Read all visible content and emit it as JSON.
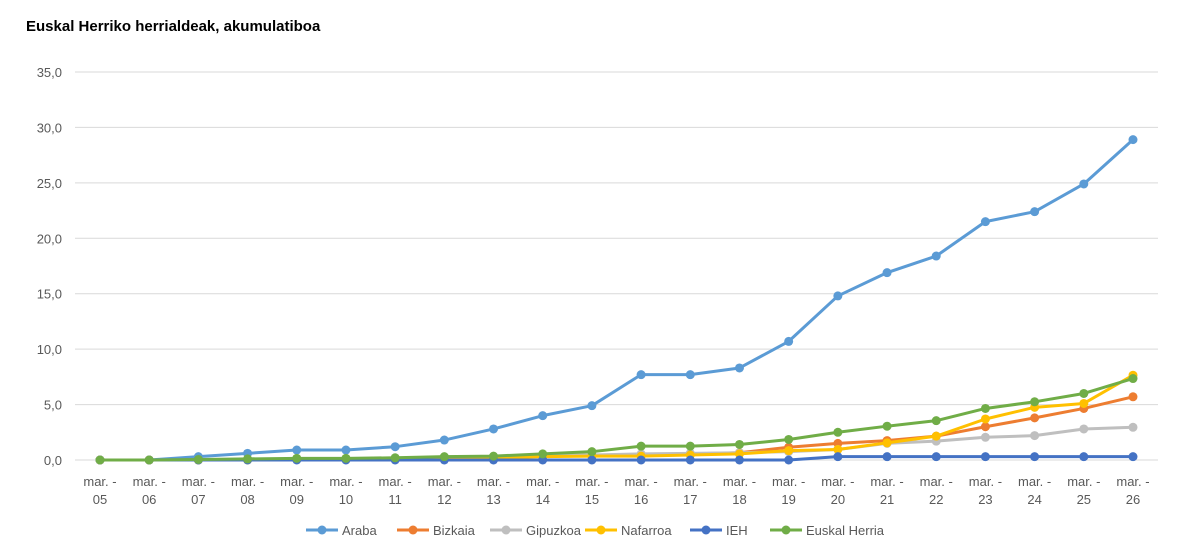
{
  "chart_data": {
    "type": "line",
    "title": "Euskal Herriko herrialdeak, akumulatiboa",
    "categories": [
      "mar. - 05",
      "mar. - 06",
      "mar. - 07",
      "mar. - 08",
      "mar. - 09",
      "mar. - 10",
      "mar. - 11",
      "mar. - 12",
      "mar. - 13",
      "mar. - 14",
      "mar. - 15",
      "mar. - 16",
      "mar. - 17",
      "mar. - 18",
      "mar. - 19",
      "mar. - 20",
      "mar. - 21",
      "mar. - 22",
      "mar. - 23",
      "mar. - 24",
      "mar. - 25",
      "mar. - 26"
    ],
    "ylim": [
      0,
      35
    ],
    "yticks": [
      "0,0",
      "5,0",
      "10,0",
      "15,0",
      "20,0",
      "25,0",
      "30,0",
      "35,0"
    ],
    "grid": true,
    "legend": "bottom",
    "series": [
      {
        "name": "Araba",
        "color": "#5b9bd5",
        "values": [
          0.0,
          0.0,
          0.3,
          0.6,
          0.9,
          0.9,
          1.2,
          1.8,
          2.8,
          4.0,
          4.9,
          7.7,
          7.7,
          8.3,
          10.7,
          14.8,
          16.9,
          18.4,
          21.5,
          22.4,
          24.9,
          28.9
        ]
      },
      {
        "name": "Bizkaia",
        "color": "#ed7d31",
        "values": [
          0.0,
          0.0,
          0.0,
          0.05,
          0.1,
          0.1,
          0.15,
          0.2,
          0.25,
          0.35,
          0.45,
          0.45,
          0.55,
          0.65,
          1.15,
          1.5,
          1.75,
          2.15,
          3.0,
          3.8,
          4.65,
          5.7
        ]
      },
      {
        "name": "Gipuzkoa",
        "color": "#bfbfbf",
        "values": [
          0.0,
          0.0,
          0.0,
          0.05,
          0.1,
          0.1,
          0.15,
          0.25,
          0.3,
          0.4,
          0.45,
          0.55,
          0.6,
          0.65,
          0.75,
          0.95,
          1.5,
          1.7,
          2.05,
          2.2,
          2.8,
          2.95
        ]
      },
      {
        "name": "Nafarroa",
        "color": "#ffc000",
        "values": [
          0.0,
          0.0,
          0.0,
          0.0,
          0.05,
          0.05,
          0.1,
          0.15,
          0.2,
          0.3,
          0.35,
          0.35,
          0.45,
          0.55,
          0.85,
          0.95,
          1.55,
          2.15,
          3.7,
          4.75,
          5.1,
          7.65
        ]
      },
      {
        "name": "IEH",
        "color": "#4472c4",
        "values": [
          0.0,
          0.0,
          0.0,
          0.0,
          0.0,
          0.0,
          0.0,
          0.0,
          0.0,
          0.0,
          0.0,
          0.0,
          0.0,
          0.0,
          0.0,
          0.3,
          0.3,
          0.3,
          0.3,
          0.3,
          0.3,
          0.3
        ]
      },
      {
        "name": "Euskal Herria",
        "color": "#70ad47",
        "values": [
          0.0,
          0.0,
          0.05,
          0.1,
          0.15,
          0.15,
          0.2,
          0.3,
          0.35,
          0.55,
          0.75,
          1.25,
          1.25,
          1.4,
          1.85,
          2.5,
          3.05,
          3.55,
          4.65,
          5.25,
          6.0,
          7.35
        ]
      }
    ]
  }
}
